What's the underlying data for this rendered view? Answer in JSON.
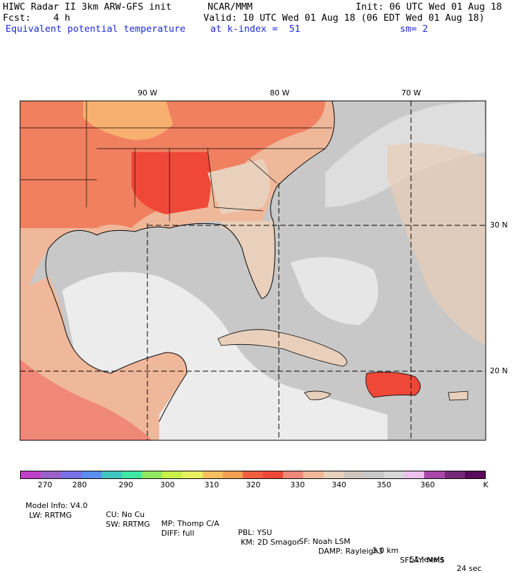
{
  "header": {
    "model": "HIWC Radar II 3km ARW-GFS init",
    "org": "NCAR/MMM",
    "init": "Init: 06 UTC Wed 01 Aug 18",
    "fcst": "Fcst:    4 h",
    "valid": "Valid: 10 UTC Wed 01 Aug 18 (06 EDT Wed 01 Aug 18)",
    "field": "Equivalent potential temperature",
    "level": "at k-index =  51",
    "smooth": "sm= 2"
  },
  "map": {
    "lon_labels": [
      "90 W",
      "80 W",
      "70 W"
    ],
    "lat_labels": [
      "30 N",
      "20 N"
    ]
  },
  "colorbar": {
    "colors": [
      "#c040c8",
      "#9a62c8",
      "#7a70e8",
      "#5a8ef0",
      "#40c8c0",
      "#40e8a8",
      "#90e860",
      "#c8f048",
      "#e8f060",
      "#f8c060",
      "#f0a050",
      "#f06040",
      "#f04838",
      "#f08878",
      "#f0b89a",
      "#e8d0bc",
      "#d0c4bc",
      "#c8c8c8",
      "#d8d8d8",
      "#ecc0ec",
      "#a848a8",
      "#782878",
      "#5a0a5a"
    ],
    "ticks": [
      "270",
      "280",
      "290",
      "300",
      "310",
      "320",
      "330",
      "340",
      "350",
      "360",
      "K"
    ]
  },
  "footer": {
    "line1": [
      "Model Info: V4.0",
      "CU: No Cu",
      "MP: Thomp C/A",
      "PBL: YSU",
      "SF: Noah LSM",
      "3.0 km",
      "51 levels",
      "24 sec"
    ],
    "line2": [
      "LW: RRTMG",
      "SW: RRTMG",
      "DIFF: full",
      "KM: 2D Smagor",
      "DAMP: Rayleigh3",
      "SFLAY: MM5"
    ]
  }
}
